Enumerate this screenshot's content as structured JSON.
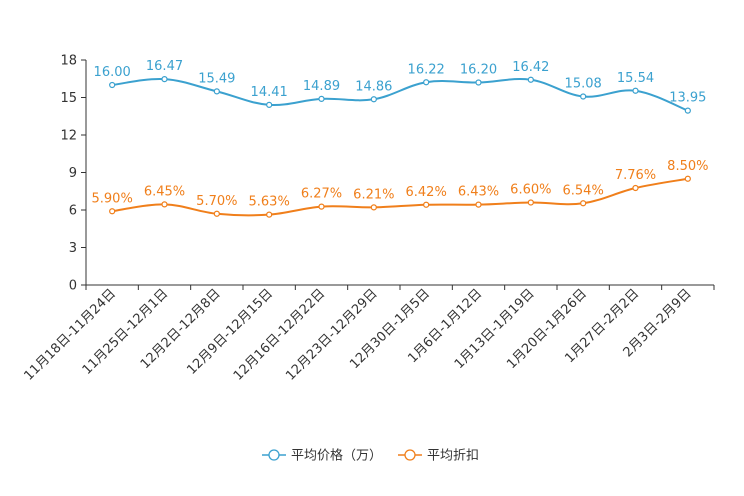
{
  "chart_data": {
    "type": "line",
    "title": "",
    "categories": [
      "11月18日-11月24日",
      "11月25日-12月1日",
      "12月2日-12月8日",
      "12月9日-12月15日",
      "12月16日-12月22日",
      "12月23日-12月29日",
      "12月30日-1月5日",
      "1月6日-1月12日",
      "1月13日-1月19日",
      "1月20日-1月26日",
      "1月27日-2月2日",
      "2月3日-2月9日"
    ],
    "series": [
      {
        "name": "平均价格（万）",
        "color": "#3ba1cf",
        "values": [
          16.0,
          16.47,
          15.49,
          14.41,
          14.89,
          14.86,
          16.22,
          16.2,
          16.42,
          15.08,
          15.54,
          13.95
        ],
        "labels": [
          "16.00",
          "16.47",
          "15.49",
          "14.41",
          "14.89",
          "14.86",
          "16.22",
          "16.20",
          "16.42",
          "15.08",
          "15.54",
          "13.95"
        ]
      },
      {
        "name": "平均折扣",
        "color": "#f07f1b",
        "values": [
          5.9,
          6.45,
          5.7,
          5.63,
          6.27,
          6.21,
          6.42,
          6.43,
          6.6,
          6.54,
          7.76,
          8.5
        ],
        "labels": [
          "5.90%",
          "6.45%",
          "5.70%",
          "5.63%",
          "6.27%",
          "6.21%",
          "6.42%",
          "6.43%",
          "6.60%",
          "6.54%",
          "7.76%",
          "8.50%"
        ]
      }
    ],
    "ylim": [
      0,
      18
    ],
    "yticks": [
      0,
      3,
      6,
      9,
      12,
      15,
      18
    ],
    "ytick_labels": [
      "0",
      "3",
      "6",
      "9",
      "12",
      "15",
      "18"
    ],
    "grid": false,
    "legend_position": "bottom-center",
    "xlabel": "",
    "ylabel": ""
  }
}
